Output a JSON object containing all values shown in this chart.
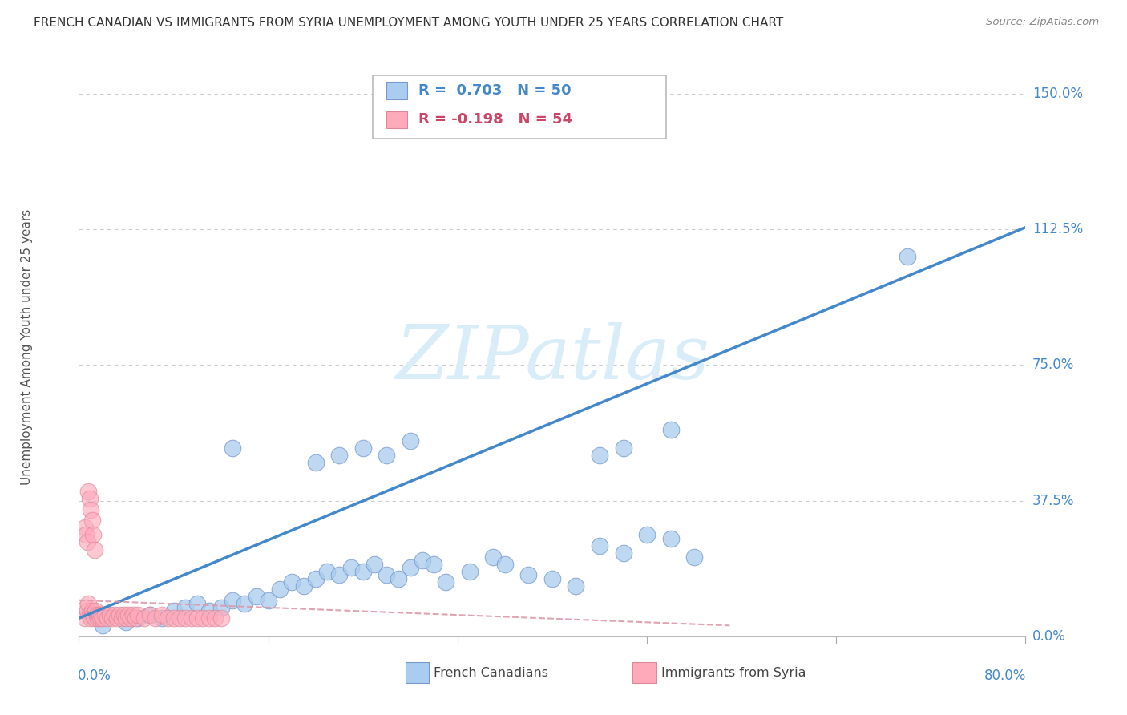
{
  "title": "FRENCH CANADIAN VS IMMIGRANTS FROM SYRIA UNEMPLOYMENT AMONG YOUTH UNDER 25 YEARS CORRELATION CHART",
  "source": "Source: ZipAtlas.com",
  "ylabel": "Unemployment Among Youth under 25 years",
  "ytick_labels": [
    "0.0%",
    "37.5%",
    "75.0%",
    "112.5%",
    "150.0%"
  ],
  "ytick_values": [
    0.0,
    0.375,
    0.75,
    1.125,
    1.5
  ],
  "xmin": 0.0,
  "xmax": 0.8,
  "ymin": 0.0,
  "ymax": 1.6,
  "blue_R": "R =  0.703",
  "blue_N": "N = 50",
  "pink_R": "R = -0.198",
  "pink_N": "N = 54",
  "blue_color": "#aaccee",
  "pink_color": "#ffaabb",
  "blue_edge_color": "#7799cc",
  "pink_edge_color": "#dd8899",
  "blue_line_color": "#4488cc",
  "pink_line_color": "#dd99aa",
  "watermark_color": "#d8edf8",
  "watermark": "ZIPatlas",
  "legend_label_blue": "French Canadians",
  "legend_label_pink": "Immigrants from Syria",
  "blue_scatter_x": [
    0.02,
    0.04,
    0.05,
    0.06,
    0.07,
    0.08,
    0.09,
    0.1,
    0.11,
    0.12,
    0.13,
    0.14,
    0.15,
    0.16,
    0.17,
    0.18,
    0.19,
    0.2,
    0.21,
    0.22,
    0.23,
    0.24,
    0.25,
    0.26,
    0.27,
    0.28,
    0.29,
    0.3,
    0.31,
    0.33,
    0.35,
    0.36,
    0.38,
    0.4,
    0.42,
    0.44,
    0.46,
    0.48,
    0.5,
    0.52,
    0.2,
    0.22,
    0.24,
    0.26,
    0.28,
    0.44,
    0.46,
    0.5,
    0.7,
    0.13
  ],
  "blue_scatter_y": [
    0.03,
    0.04,
    0.05,
    0.06,
    0.05,
    0.07,
    0.08,
    0.09,
    0.07,
    0.08,
    0.1,
    0.09,
    0.11,
    0.1,
    0.13,
    0.15,
    0.14,
    0.16,
    0.18,
    0.17,
    0.19,
    0.18,
    0.2,
    0.17,
    0.16,
    0.19,
    0.21,
    0.2,
    0.15,
    0.18,
    0.22,
    0.2,
    0.17,
    0.16,
    0.14,
    0.25,
    0.23,
    0.28,
    0.27,
    0.22,
    0.48,
    0.5,
    0.52,
    0.5,
    0.54,
    0.5,
    0.52,
    0.57,
    1.05,
    0.52
  ],
  "pink_scatter_x": [
    0.005,
    0.006,
    0.007,
    0.008,
    0.009,
    0.01,
    0.011,
    0.012,
    0.013,
    0.014,
    0.015,
    0.016,
    0.017,
    0.018,
    0.019,
    0.02,
    0.022,
    0.024,
    0.026,
    0.028,
    0.03,
    0.032,
    0.034,
    0.036,
    0.038,
    0.04,
    0.042,
    0.044,
    0.046,
    0.048,
    0.05,
    0.055,
    0.06,
    0.065,
    0.07,
    0.075,
    0.08,
    0.085,
    0.09,
    0.095,
    0.1,
    0.105,
    0.11,
    0.115,
    0.12,
    0.005,
    0.006,
    0.007,
    0.008,
    0.009,
    0.01,
    0.011,
    0.012,
    0.013
  ],
  "pink_scatter_y": [
    0.05,
    0.08,
    0.07,
    0.09,
    0.06,
    0.05,
    0.07,
    0.06,
    0.05,
    0.07,
    0.06,
    0.05,
    0.06,
    0.05,
    0.06,
    0.05,
    0.06,
    0.05,
    0.06,
    0.05,
    0.06,
    0.05,
    0.06,
    0.05,
    0.06,
    0.05,
    0.06,
    0.05,
    0.06,
    0.05,
    0.06,
    0.05,
    0.06,
    0.05,
    0.06,
    0.05,
    0.05,
    0.05,
    0.05,
    0.05,
    0.05,
    0.05,
    0.05,
    0.05,
    0.05,
    0.3,
    0.28,
    0.26,
    0.4,
    0.38,
    0.35,
    0.32,
    0.28,
    0.24
  ],
  "blue_line_x": [
    0.0,
    0.8
  ],
  "blue_line_y": [
    0.05,
    1.13
  ],
  "pink_line_x": [
    0.0,
    0.55
  ],
  "pink_line_y": [
    0.1,
    0.03
  ]
}
